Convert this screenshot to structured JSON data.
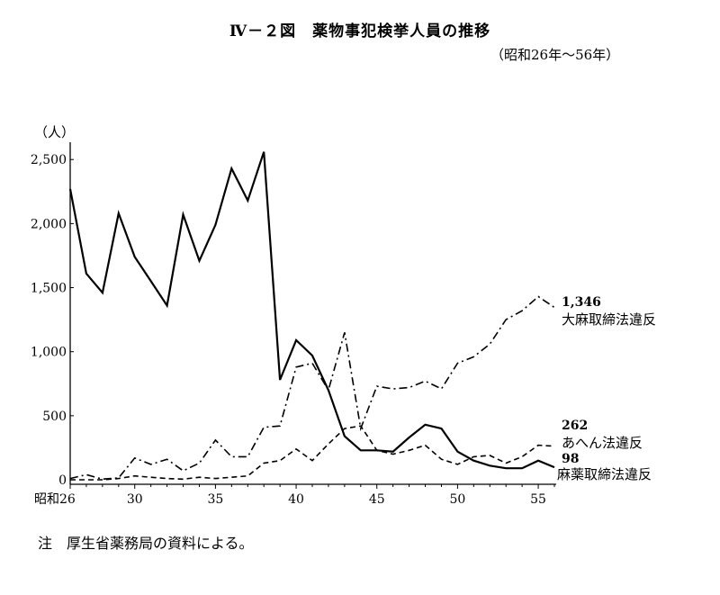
{
  "title": "Ⅳ－２図　薬物事犯検挙人員の推移",
  "subtitle": "（昭和26年～56年）",
  "note": "注　厚生省薬務局の資料による。",
  "chart_data": {
    "type": "line",
    "ylabel": "（人）",
    "ylim": [
      0,
      2600
    ],
    "xlim": [
      26,
      56
    ],
    "x_ticks": [
      {
        "x": 26,
        "label": "昭和26"
      },
      {
        "x": 30,
        "label": "30"
      },
      {
        "x": 35,
        "label": "35"
      },
      {
        "x": 40,
        "label": "40"
      },
      {
        "x": 45,
        "label": "45"
      },
      {
        "x": 50,
        "label": "50"
      },
      {
        "x": 55,
        "label": "55"
      }
    ],
    "y_ticks": [
      {
        "y": 0,
        "label": "0"
      },
      {
        "y": 500,
        "label": "500"
      },
      {
        "y": 1000,
        "label": "1,000"
      },
      {
        "y": 1500,
        "label": "1,500"
      },
      {
        "y": 2000,
        "label": "2,000"
      },
      {
        "y": 2500,
        "label": "2,500"
      }
    ],
    "x": [
      26,
      27,
      28,
      29,
      30,
      31,
      32,
      33,
      34,
      35,
      36,
      37,
      38,
      39,
      40,
      41,
      42,
      43,
      44,
      45,
      46,
      47,
      48,
      49,
      50,
      51,
      52,
      53,
      54,
      55,
      56
    ],
    "series": [
      {
        "name": "大麻取締法違反",
        "end_label": "1,346",
        "dash": "dashdot",
        "values": [
          10,
          40,
          5,
          15,
          170,
          120,
          160,
          70,
          130,
          310,
          180,
          180,
          410,
          420,
          880,
          910,
          700,
          1150,
          400,
          730,
          710,
          720,
          770,
          710,
          910,
          960,
          1060,
          1250,
          1320,
          1430,
          1346
        ]
      },
      {
        "name": "あへん法違反",
        "end_label": "262",
        "dash": "dashed",
        "values": [
          0,
          0,
          0,
          10,
          30,
          20,
          10,
          5,
          20,
          10,
          20,
          30,
          130,
          150,
          240,
          150,
          280,
          400,
          420,
          230,
          200,
          230,
          270,
          160,
          120,
          180,
          190,
          130,
          180,
          270,
          262
        ]
      },
      {
        "name": "麻薬取締法違反",
        "end_label": "98",
        "dash": "solid",
        "values": [
          2270,
          1610,
          1460,
          2080,
          1740,
          1550,
          1360,
          2070,
          1710,
          1990,
          2430,
          2180,
          2560,
          780,
          1090,
          970,
          700,
          340,
          230,
          230,
          220,
          330,
          430,
          400,
          220,
          150,
          110,
          90,
          90,
          150,
          98
        ]
      }
    ]
  }
}
